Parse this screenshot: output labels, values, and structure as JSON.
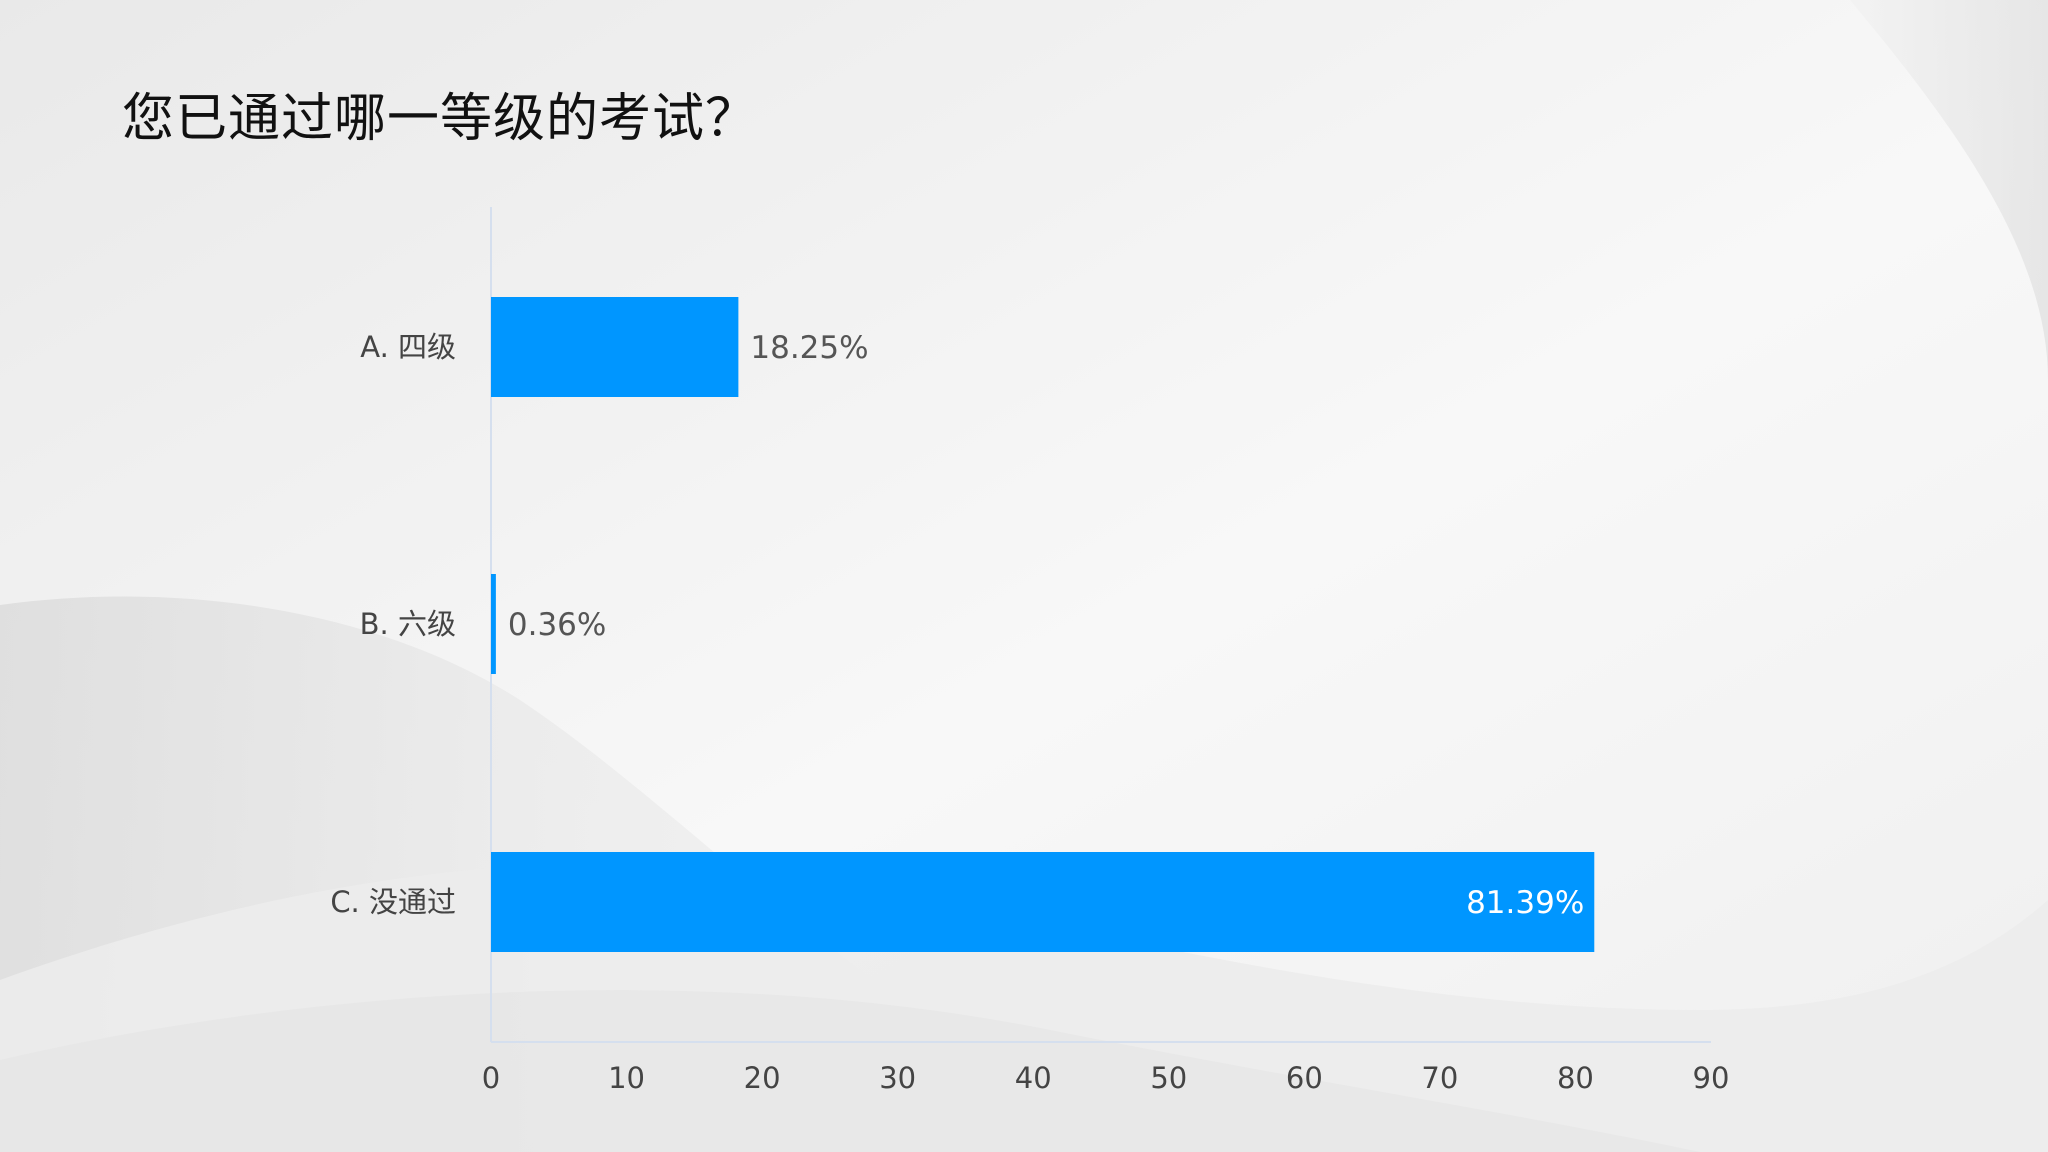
{
  "title": "您已通过哪一等级的考试？",
  "chart_data": {
    "type": "bar",
    "orientation": "horizontal",
    "categories": [
      "A. 四级",
      "B. 六级",
      "C. 没通过"
    ],
    "values": [
      18.25,
      0.36,
      81.39
    ],
    "data_labels": [
      "18.25%",
      "0.36%",
      "81.39%"
    ],
    "xlim": [
      0,
      90
    ],
    "x_ticks": [
      0,
      10,
      20,
      30,
      40,
      50,
      60,
      70,
      80,
      90
    ],
    "grid": false,
    "legend": "none",
    "bar_color": "#0096ff"
  },
  "colors": {
    "bar": "#0096ff",
    "axis": "#d5dfee",
    "background": "#f7f7f7"
  }
}
